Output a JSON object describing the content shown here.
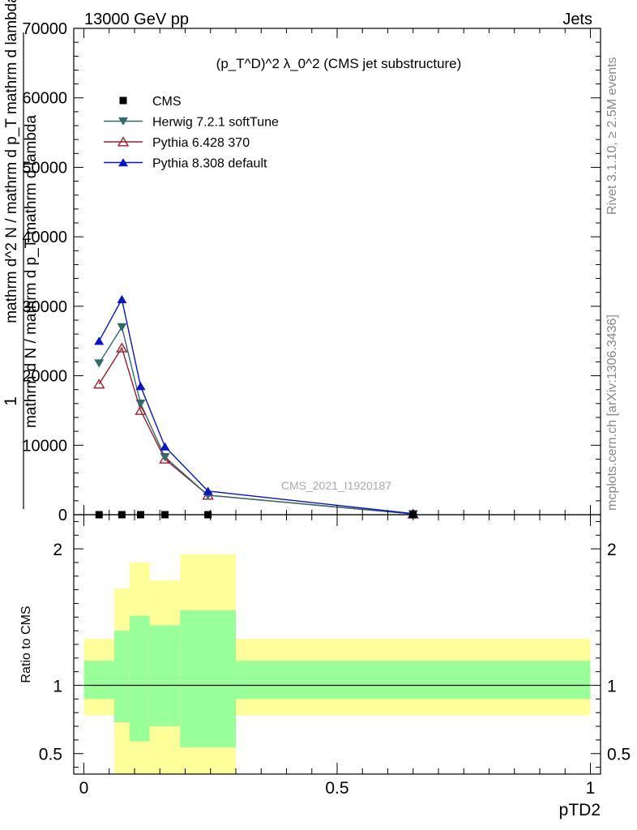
{
  "header": {
    "energy_label": "13000 GeV pp",
    "category_label": "Jets"
  },
  "side_labels": {
    "rivet": "Rivet 3.1.10, ≥ 2.5M events",
    "mcplots": "mcplots.cern.ch [arXiv:1306.3436]"
  },
  "watermark": "CMS_2021_I1920187",
  "colors": {
    "cms": "#000000",
    "herwig": "#2e6b6b",
    "pythia6": "#a01c2a",
    "pythia8": "#0a14c8",
    "band_inner": "#99ff99",
    "band_outer": "#ffff99"
  },
  "chart_data": [
    {
      "type": "line",
      "panel": "main",
      "title": "(p_T^D)^2 λ_0^2 (CMS jet substructure)",
      "ylabel_numerator": "1",
      "ylabel_denominator": "mathrm d N / mathrm d p_T mathrm d lambda",
      "ylabel_alt": "mathrm d^2 N / mathrm d p_T mathrm d lambda",
      "xlabel": "pTD2",
      "xlim": [
        -0.02,
        1.02
      ],
      "ylim": [
        0,
        70000
      ],
      "yticks": [
        0,
        10000,
        20000,
        30000,
        40000,
        50000,
        60000,
        70000
      ],
      "ytick_labels": [
        "0",
        "10000",
        "20000",
        "30000",
        "40000",
        "50000",
        "60000",
        "70000"
      ],
      "x": [
        0.03,
        0.075,
        0.112,
        0.16,
        0.245,
        0.65
      ],
      "series": [
        {
          "name": "CMS",
          "marker": "square",
          "values": [
            0,
            0,
            0,
            0,
            0,
            0
          ]
        },
        {
          "name": "Herwig 7.2.1 softTune",
          "marker": "triangle-down",
          "values": [
            21800,
            27000,
            16000,
            8300,
            2800,
            100
          ]
        },
        {
          "name": "Pythia 6.428 370",
          "marker": "triangle-open",
          "values": [
            18800,
            24000,
            15000,
            8000,
            2800,
            100
          ]
        },
        {
          "name": "Pythia 8.308 default",
          "marker": "triangle-up",
          "values": [
            25000,
            31000,
            18500,
            9800,
            3400,
            150
          ]
        }
      ]
    },
    {
      "type": "area",
      "panel": "ratio",
      "ylabel": "Ratio to CMS",
      "xlabel": "pTD2",
      "xlim": [
        -0.02,
        1.02
      ],
      "ylim": [
        0.35,
        2.25
      ],
      "yticks": [
        0.5,
        1,
        2
      ],
      "ytick_labels": [
        "0.5",
        "1",
        "2"
      ],
      "xticks": [
        0,
        0.5,
        1
      ],
      "xtick_labels": [
        "0",
        "0.5",
        "1"
      ],
      "bin_edges": [
        0.0,
        0.06,
        0.09,
        0.13,
        0.19,
        0.3,
        1.0
      ],
      "inner_band_low": [
        0.9,
        0.73,
        0.59,
        0.7,
        0.545,
        0.9
      ],
      "inner_band_high": [
        1.18,
        1.4,
        1.51,
        1.44,
        1.55,
        1.18
      ],
      "outer_band_low": [
        0.78,
        0.3,
        0.3,
        0.3,
        0.3,
        0.78
      ],
      "outer_band_high": [
        1.34,
        1.71,
        1.9,
        1.77,
        1.96,
        1.34
      ],
      "reference": 1
    }
  ]
}
